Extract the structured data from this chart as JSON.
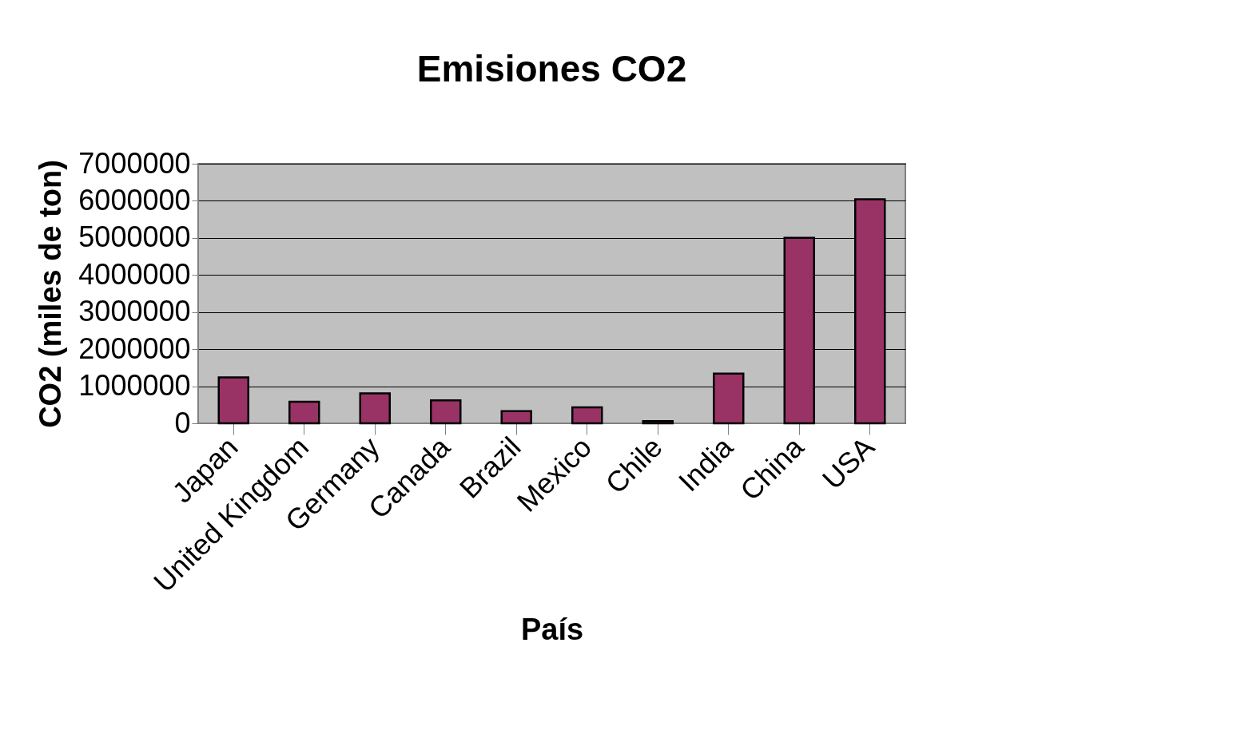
{
  "chart_data": {
    "type": "bar",
    "title": "Emisiones CO2",
    "xlabel": "País",
    "ylabel": "CO2 (miles de ton)",
    "categories": [
      "Japan",
      "United Kingdom",
      "Germany",
      "Canada",
      "Brazil",
      "Mexico",
      "Chile",
      "India",
      "China",
      "USA"
    ],
    "values": [
      1240000,
      580000,
      810000,
      620000,
      330000,
      430000,
      60000,
      1340000,
      5000000,
      6040000
    ],
    "color": "#993366",
    "ylim": [
      0,
      7000000
    ],
    "yticks": [
      0,
      1000000,
      2000000,
      3000000,
      4000000,
      5000000,
      6000000,
      7000000
    ],
    "grid": "y"
  }
}
